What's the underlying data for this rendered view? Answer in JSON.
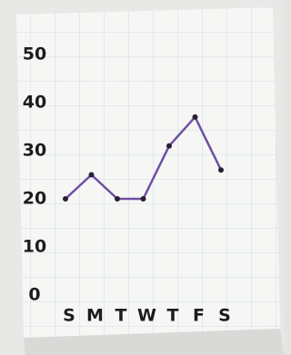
{
  "chart_data": {
    "type": "line",
    "categories": [
      "S",
      "M",
      "T",
      "W",
      "T",
      "F",
      "S"
    ],
    "values": [
      20,
      25,
      20,
      20,
      31,
      37,
      26
    ],
    "color": "#6f4fa3",
    "ylim": [
      0,
      50
    ],
    "yticks": [
      0,
      10,
      20,
      30,
      40,
      50
    ]
  }
}
